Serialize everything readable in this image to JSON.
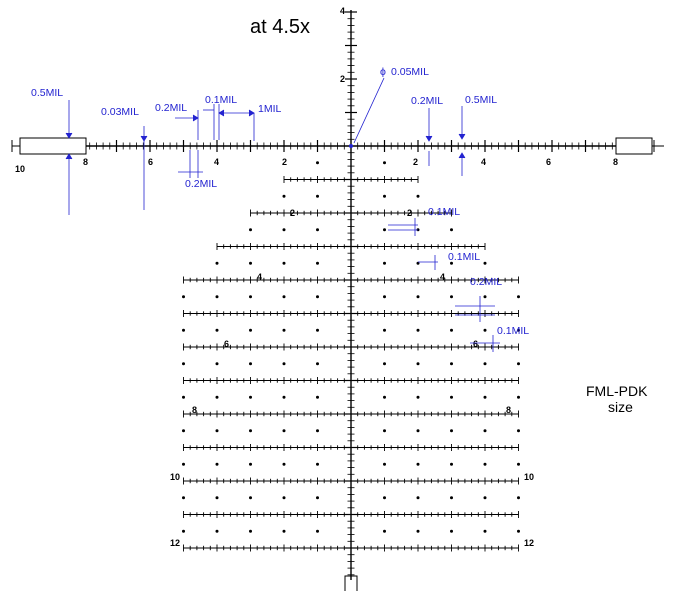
{
  "title": "at 4.5x",
  "caption": {
    "line1": "FML-PDK",
    "line2": "size"
  },
  "center_dot_label": "0.05MIL",
  "phi_symbol": "ϕ",
  "vertical_labels": {
    "top": "4",
    "upper": "2"
  },
  "horizontal_labels": {
    "left": [
      "10",
      "8",
      "6",
      "4",
      "2"
    ],
    "right": [
      "2",
      "4",
      "6",
      "8"
    ]
  },
  "tree_labels": {
    "r2": "2",
    "r4": "4",
    "r6": "6",
    "r8": "8",
    "r10": "10",
    "r12": "12"
  },
  "dimension_labels": {
    "post_width": "0.5MIL",
    "post_line": "0.03MIL",
    "tick_spacing_a": "0.2MIL",
    "tick_gap": "0.1MIL",
    "major_spacing": "1MIL",
    "tick_height": "0.2MIL",
    "right_tick_spacing": "0.2MIL",
    "right_tick_width": "0.5MIL",
    "tree_a": "0.1MIL",
    "tree_b": "0.1MIL",
    "tree_c": "0.2MIL",
    "tree_d": "0.1MIL"
  },
  "colors": {
    "reticle": "#000000",
    "annotation": "#2323d0"
  }
}
